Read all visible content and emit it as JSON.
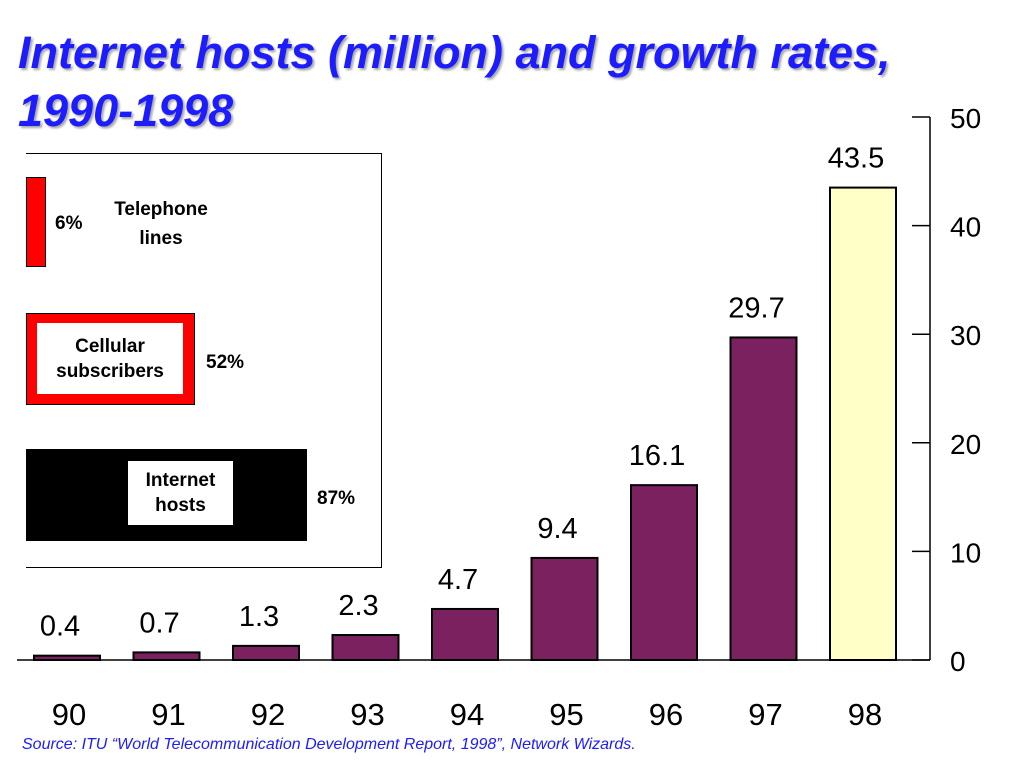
{
  "title_line1": "Internet hosts (million) and growth rates,",
  "title_line2": "1990-1998",
  "source": "Source:  ITU “World Telecommunication Development Report, 1998”, Network Wizards.",
  "colors": {
    "title": "#1c1cff",
    "bar": "#7b2160",
    "highlight_bar": "#ffffc8",
    "red": "#ff0000"
  },
  "chart_data": [
    {
      "type": "bar",
      "title": "Internet hosts (million) and growth rates, 1990-1998",
      "categories": [
        "90",
        "91",
        "92",
        "93",
        "94",
        "95",
        "96",
        "97",
        "98"
      ],
      "values": [
        0.4,
        0.7,
        1.3,
        2.3,
        4.7,
        9.4,
        16.1,
        29.7,
        43.5
      ],
      "value_labels": [
        "0.4",
        "0.7",
        "1.3",
        "2.3",
        "4.7",
        "9.4",
        "16.1",
        "29.7",
        "43.5"
      ],
      "highlight_index": 8,
      "ylim": [
        0,
        50
      ],
      "y_ticks": [
        "0",
        "10",
        "20",
        "30",
        "40",
        "50"
      ],
      "y_axis_side": "right",
      "grid": false
    },
    {
      "type": "bar",
      "orientation": "horizontal",
      "categories": [
        {
          "line1": "Telephone",
          "line2": "lines"
        },
        {
          "line1": "Cellular",
          "line2": "subscribers"
        },
        {
          "line1": "Internet",
          "line2": "hosts"
        }
      ],
      "values": [
        6,
        52,
        87
      ],
      "value_labels": [
        "6%",
        "52%",
        "87%"
      ],
      "unit": "%"
    }
  ]
}
